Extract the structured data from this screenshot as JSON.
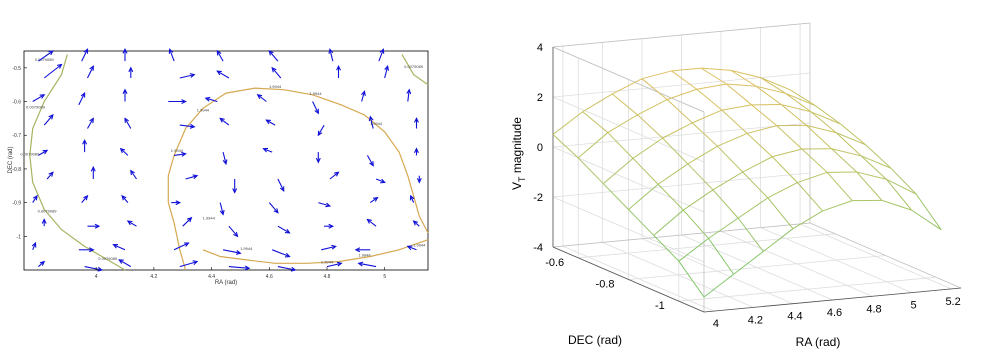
{
  "chart_data": [
    {
      "type": "quiver-contour",
      "xlabel": "RA (rad)",
      "ylabel": "DEC (rad)",
      "xlim": [
        3.75,
        5.15
      ],
      "ylim": [
        -1.1,
        -0.45
      ],
      "xticks": [
        "4",
        "4.2",
        "4.4",
        "4.6",
        "4.8",
        "5"
      ],
      "yticks": [
        "-0.5",
        "-0.6",
        "-0.7",
        "-0.8",
        "-0.9",
        "-1"
      ],
      "contours": [
        {
          "level_label": "0.0079089",
          "color": "#a4b560",
          "path": [
            [
              3.9,
              -0.46
            ],
            [
              3.88,
              -0.52
            ],
            [
              3.82,
              -0.6
            ],
            [
              3.78,
              -0.68
            ],
            [
              3.77,
              -0.76
            ],
            [
              3.78,
              -0.84
            ],
            [
              3.82,
              -0.92
            ],
            [
              3.88,
              -0.98
            ],
            [
              3.96,
              -1.03
            ],
            [
              4.04,
              -1.07
            ],
            [
              4.1,
              -1.1
            ]
          ],
          "label_positions": [
            [
              3.82,
              -0.48
            ],
            [
              3.79,
              -0.62
            ],
            [
              3.77,
              -0.76
            ],
            [
              3.83,
              -0.93
            ],
            [
              4.04,
              -1.07
            ]
          ]
        },
        {
          "level_label": "0.0079089",
          "color": "#a4b560",
          "path": [
            [
              5.06,
              -0.46
            ],
            [
              5.1,
              -0.52
            ],
            [
              5.15,
              -0.55
            ]
          ],
          "label_positions": [
            [
              5.1,
              -0.5
            ]
          ]
        },
        {
          "level_label": "1.9944",
          "color": "#d6a850",
          "path": [
            [
              4.31,
              -1.1
            ],
            [
              4.29,
              -1.04
            ],
            [
              4.27,
              -0.96
            ],
            [
              4.25,
              -0.9
            ],
            [
              4.25,
              -0.82
            ],
            [
              4.27,
              -0.76
            ],
            [
              4.31,
              -0.68
            ],
            [
              4.37,
              -0.62
            ],
            [
              4.45,
              -0.575
            ],
            [
              4.55,
              -0.56
            ],
            [
              4.65,
              -0.565
            ],
            [
              4.75,
              -0.58
            ],
            [
              4.85,
              -0.61
            ],
            [
              4.93,
              -0.64
            ],
            [
              5.0,
              -0.69
            ],
            [
              5.05,
              -0.75
            ],
            [
              5.08,
              -0.82
            ],
            [
              5.1,
              -0.88
            ],
            [
              5.12,
              -0.94
            ],
            [
              5.15,
              -0.99
            ]
          ],
          "label_positions": [
            [
              4.62,
              -0.56
            ],
            [
              4.37,
              -0.63
            ],
            [
              4.76,
              -0.58
            ],
            [
              4.28,
              -0.75
            ],
            [
              4.97,
              -0.67
            ],
            [
              4.39,
              -0.95
            ]
          ]
        },
        {
          "level_label": "1.9944",
          "color": "#d6a850",
          "path": [
            [
              4.37,
              -1.04
            ],
            [
              4.43,
              -1.06
            ],
            [
              4.52,
              -1.07
            ],
            [
              4.62,
              -1.08
            ],
            [
              4.73,
              -1.08
            ],
            [
              4.84,
              -1.075
            ],
            [
              4.95,
              -1.06
            ],
            [
              5.05,
              -1.04
            ],
            [
              5.15,
              -1.01
            ]
          ],
          "label_positions": [
            [
              4.52,
              -1.04
            ],
            [
              4.8,
              -1.08
            ],
            [
              4.93,
              -1.06
            ],
            [
              5.12,
              -1.03
            ]
          ]
        }
      ],
      "arrows": [
        [
          3.8,
          -0.48,
          0.05,
          0.03
        ],
        [
          3.95,
          -0.48,
          0.02,
          0.035
        ],
        [
          4.1,
          -0.48,
          0.0,
          0.035
        ],
        [
          4.27,
          -0.48,
          -0.015,
          0.035
        ],
        [
          4.44,
          -0.48,
          -0.02,
          0.03
        ],
        [
          4.63,
          -0.48,
          -0.03,
          0.03
        ],
        [
          4.82,
          -0.48,
          -0.01,
          0.035
        ],
        [
          4.98,
          -0.48,
          0.015,
          0.035
        ],
        [
          3.82,
          -0.53,
          0.06,
          0.04
        ],
        [
          3.97,
          -0.53,
          0.02,
          0.035
        ],
        [
          4.12,
          -0.53,
          0.0,
          0.03
        ],
        [
          4.29,
          -0.53,
          0.05,
          0.01
        ],
        [
          4.46,
          -0.53,
          -0.04,
          0.02
        ],
        [
          4.64,
          -0.53,
          -0.03,
          0.03
        ],
        [
          4.84,
          -0.53,
          0.0,
          0.035
        ],
        [
          5.0,
          -0.53,
          0.01,
          0.035
        ],
        [
          3.78,
          -0.6,
          0.04,
          0.02
        ],
        [
          3.94,
          -0.61,
          0.02,
          0.035
        ],
        [
          4.1,
          -0.6,
          0.0,
          0.035
        ],
        [
          4.25,
          -0.6,
          0.06,
          0.0
        ],
        [
          4.42,
          -0.6,
          -0.04,
          0.01
        ],
        [
          4.59,
          -0.6,
          -0.03,
          0.02
        ],
        [
          4.75,
          -0.6,
          0.02,
          -0.035
        ],
        [
          4.92,
          -0.6,
          0.01,
          0.03
        ],
        [
          5.08,
          -0.6,
          0.005,
          0.035
        ],
        [
          3.82,
          -0.67,
          0.03,
          0.03
        ],
        [
          3.97,
          -0.68,
          0.02,
          0.03
        ],
        [
          4.12,
          -0.68,
          -0.02,
          0.03
        ],
        [
          4.29,
          -0.67,
          0.05,
          -0.005
        ],
        [
          4.46,
          -0.67,
          -0.03,
          0.02
        ],
        [
          4.62,
          -0.67,
          -0.03,
          0.015
        ],
        [
          4.79,
          -0.67,
          -0.02,
          -0.03
        ],
        [
          4.96,
          -0.68,
          -0.01,
          0.035
        ],
        [
          5.11,
          -0.68,
          0.0,
          0.03
        ],
        [
          3.8,
          -0.76,
          0.03,
          0.015
        ],
        [
          3.96,
          -0.75,
          0.0,
          0.035
        ],
        [
          4.11,
          -0.76,
          -0.025,
          0.02
        ],
        [
          4.27,
          -0.76,
          0.04,
          0.005
        ],
        [
          4.44,
          -0.75,
          0.01,
          -0.035
        ],
        [
          4.61,
          -0.75,
          -0.03,
          0.01
        ],
        [
          4.77,
          -0.75,
          0.0,
          -0.03
        ],
        [
          4.94,
          -0.76,
          0.02,
          -0.03
        ],
        [
          5.11,
          -0.76,
          0.0,
          0.02
        ],
        [
          3.83,
          -0.83,
          0.02,
          0.02
        ],
        [
          3.99,
          -0.83,
          0.0,
          0.035
        ],
        [
          4.14,
          -0.83,
          -0.02,
          0.025
        ],
        [
          4.31,
          -0.83,
          0.04,
          0.01
        ],
        [
          4.48,
          -0.83,
          0.0,
          -0.04
        ],
        [
          4.63,
          -0.83,
          0.02,
          -0.035
        ],
        [
          4.81,
          -0.83,
          0.03,
          0.02
        ],
        [
          4.97,
          -0.83,
          0.03,
          -0.01
        ],
        [
          5.12,
          -0.82,
          0.0,
          -0.02
        ],
        [
          3.78,
          -0.9,
          0.015,
          0.02
        ],
        [
          3.95,
          -0.9,
          0.02,
          0.02
        ],
        [
          4.11,
          -0.9,
          -0.02,
          0.02
        ],
        [
          4.26,
          -0.9,
          0.03,
          0.0
        ],
        [
          4.43,
          -0.9,
          0.01,
          -0.035
        ],
        [
          4.6,
          -0.9,
          0.03,
          -0.03
        ],
        [
          4.77,
          -0.9,
          0.04,
          -0.01
        ],
        [
          4.95,
          -0.9,
          0.025,
          0.015
        ],
        [
          5.1,
          -0.9,
          -0.01,
          0.02
        ],
        [
          3.82,
          -0.97,
          0.0,
          0.02
        ],
        [
          3.97,
          -0.97,
          0.04,
          0.0
        ],
        [
          4.14,
          -0.97,
          -0.03,
          0.015
        ],
        [
          4.3,
          -0.97,
          0.03,
          0.025
        ],
        [
          4.46,
          -0.97,
          0.03,
          -0.03
        ],
        [
          4.63,
          -0.97,
          0.04,
          -0.02
        ],
        [
          4.79,
          -0.97,
          0.03,
          0.0
        ],
        [
          4.97,
          -0.97,
          -0.03,
          0.02
        ],
        [
          5.12,
          -0.97,
          -0.02,
          0.015
        ],
        [
          3.78,
          -1.04,
          0.01,
          0.02
        ],
        [
          3.94,
          -1.04,
          0.05,
          0.0
        ],
        [
          4.1,
          -1.04,
          -0.04,
          0.015
        ],
        [
          4.27,
          -1.04,
          0.05,
          0.02
        ],
        [
          4.44,
          -1.04,
          0.06,
          -0.01
        ],
        [
          4.61,
          -1.04,
          0.06,
          -0.02
        ],
        [
          4.78,
          -1.04,
          0.05,
          0.01
        ],
        [
          4.95,
          -1.04,
          -0.05,
          0.0
        ],
        [
          5.11,
          -1.04,
          -0.03,
          0.01
        ],
        [
          3.8,
          -1.09,
          0.02,
          0.015
        ],
        [
          3.96,
          -1.09,
          0.06,
          -0.01
        ],
        [
          4.12,
          -1.09,
          -0.04,
          0.02
        ],
        [
          4.29,
          -1.09,
          0.06,
          0.015
        ],
        [
          4.46,
          -1.09,
          0.07,
          -0.005
        ],
        [
          4.63,
          -1.09,
          0.06,
          -0.01
        ],
        [
          4.8,
          -1.09,
          0.05,
          0.01
        ],
        [
          4.97,
          -1.09,
          -0.06,
          0.01
        ]
      ]
    },
    {
      "type": "surface",
      "xlabel": "RA (rad)",
      "ylabel": "DEC (rad)",
      "zlabel_main": "V",
      "zlabel_sub": "T",
      "zlabel_rest": " magnitude",
      "xticks": [
        "4",
        "4.2",
        "4.4",
        "4.6",
        "4.8",
        "5",
        "5.2"
      ],
      "yticks": [
        "-0.6",
        "-0.8",
        "-1"
      ],
      "zticks": [
        "4",
        "2",
        "0",
        "-2",
        "-4"
      ],
      "xlim": [
        3.95,
        5.25
      ],
      "ylim": [
        -1.1,
        -0.5
      ],
      "zlim": [
        -4,
        4
      ],
      "ra": [
        3.95,
        4.1,
        4.25,
        4.4,
        4.55,
        4.7,
        4.85,
        5.0,
        5.15
      ],
      "dec": [
        -1.1,
        -1.0,
        -0.9,
        -0.8,
        -0.7,
        -0.6,
        -0.5
      ],
      "z": [
        [
          -3.4,
          -2.4,
          -1.8,
          -1.2,
          -0.6,
          0.0,
          0.5
        ],
        [
          -2.6,
          -1.6,
          -0.9,
          -0.3,
          0.3,
          0.9,
          1.3
        ],
        [
          -1.8,
          -0.9,
          -0.2,
          0.4,
          1.0,
          1.5,
          1.9
        ],
        [
          -1.0,
          -0.2,
          0.4,
          1.0,
          1.5,
          2.0,
          2.4
        ],
        [
          -0.4,
          0.3,
          0.9,
          1.4,
          1.9,
          2.3,
          2.6
        ],
        [
          -0.1,
          0.6,
          1.1,
          1.6,
          2.0,
          2.4,
          2.6
        ],
        [
          -0.2,
          0.5,
          1.0,
          1.5,
          1.9,
          2.2,
          2.4
        ],
        [
          -0.7,
          0.1,
          0.6,
          1.1,
          1.5,
          1.8,
          2.0
        ],
        [
          -1.6,
          -0.6,
          0.0,
          0.5,
          0.9,
          1.2,
          1.4
        ]
      ],
      "colormap": [
        "#7ec76a",
        "#e0c060"
      ]
    }
  ]
}
